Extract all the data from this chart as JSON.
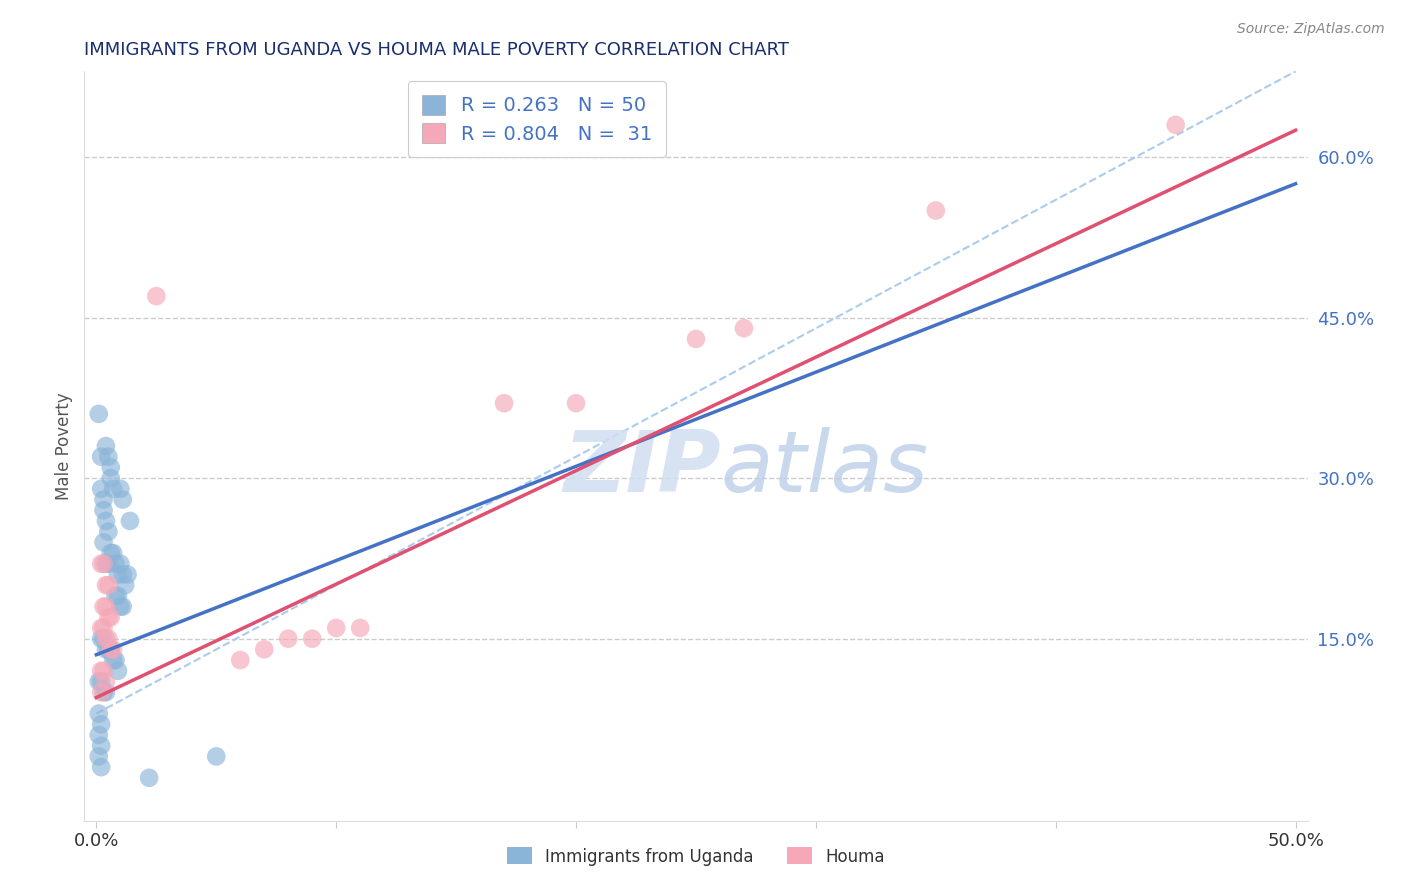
{
  "title": "IMMIGRANTS FROM UGANDA VS HOUMA MALE POVERTY CORRELATION CHART",
  "source_text": "Source: ZipAtlas.com",
  "ylabel": "Male Poverty",
  "xlim": [
    -0.005,
    0.505
  ],
  "ylim": [
    -0.02,
    0.68
  ],
  "xtick_positions": [
    0.0,
    0.1,
    0.2,
    0.3,
    0.4,
    0.5
  ],
  "xtick_labels": [
    "0.0%",
    "",
    "",
    "",
    "",
    "50.0%"
  ],
  "ytick_right_vals": [
    0.15,
    0.3,
    0.45,
    0.6
  ],
  "ytick_right_labels": [
    "15.0%",
    "30.0%",
    "45.0%",
    "60.0%"
  ],
  "grid_color": "#cccccc",
  "background_color": "#ffffff",
  "blue_dot_color": "#8ab4d8",
  "pink_dot_color": "#f4a8b8",
  "blue_line_color": "#4472c4",
  "pink_line_color": "#e05070",
  "dash_line_color": "#aaccee",
  "legend_line1": "R = 0.263   N = 50",
  "legend_line2": "R = 0.804   N =  31",
  "legend_label1": "Immigrants from Uganda",
  "legend_label2": "Houma",
  "watermark_zip": "ZIP",
  "watermark_atlas": "atlas",
  "title_color": "#1a2e6e",
  "axis_label_color": "#555555",
  "right_tick_color": "#4472c4",
  "source_color": "#888888",
  "blue_scatter": [
    [
      0.001,
      0.36
    ],
    [
      0.002,
      0.32
    ],
    [
      0.004,
      0.33
    ],
    [
      0.005,
      0.32
    ],
    [
      0.003,
      0.28
    ],
    [
      0.006,
      0.31
    ],
    [
      0.002,
      0.29
    ],
    [
      0.003,
      0.27
    ],
    [
      0.004,
      0.26
    ],
    [
      0.005,
      0.25
    ],
    [
      0.003,
      0.24
    ],
    [
      0.006,
      0.3
    ],
    [
      0.007,
      0.29
    ],
    [
      0.01,
      0.29
    ],
    [
      0.011,
      0.28
    ],
    [
      0.014,
      0.26
    ],
    [
      0.004,
      0.22
    ],
    [
      0.005,
      0.22
    ],
    [
      0.006,
      0.23
    ],
    [
      0.007,
      0.23
    ],
    [
      0.008,
      0.22
    ],
    [
      0.009,
      0.21
    ],
    [
      0.01,
      0.22
    ],
    [
      0.011,
      0.21
    ],
    [
      0.012,
      0.2
    ],
    [
      0.013,
      0.21
    ],
    [
      0.008,
      0.19
    ],
    [
      0.009,
      0.19
    ],
    [
      0.01,
      0.18
    ],
    [
      0.011,
      0.18
    ],
    [
      0.002,
      0.15
    ],
    [
      0.003,
      0.15
    ],
    [
      0.004,
      0.14
    ],
    [
      0.005,
      0.14
    ],
    [
      0.006,
      0.14
    ],
    [
      0.007,
      0.13
    ],
    [
      0.008,
      0.13
    ],
    [
      0.009,
      0.12
    ],
    [
      0.001,
      0.11
    ],
    [
      0.002,
      0.11
    ],
    [
      0.003,
      0.1
    ],
    [
      0.004,
      0.1
    ],
    [
      0.001,
      0.08
    ],
    [
      0.002,
      0.07
    ],
    [
      0.001,
      0.06
    ],
    [
      0.002,
      0.05
    ],
    [
      0.001,
      0.04
    ],
    [
      0.002,
      0.03
    ],
    [
      0.05,
      0.04
    ],
    [
      0.022,
      0.02
    ]
  ],
  "pink_scatter": [
    [
      0.002,
      0.22
    ],
    [
      0.003,
      0.22
    ],
    [
      0.004,
      0.2
    ],
    [
      0.005,
      0.2
    ],
    [
      0.003,
      0.18
    ],
    [
      0.004,
      0.18
    ],
    [
      0.005,
      0.17
    ],
    [
      0.006,
      0.17
    ],
    [
      0.002,
      0.16
    ],
    [
      0.003,
      0.16
    ],
    [
      0.004,
      0.15
    ],
    [
      0.005,
      0.15
    ],
    [
      0.006,
      0.14
    ],
    [
      0.007,
      0.14
    ],
    [
      0.002,
      0.12
    ],
    [
      0.003,
      0.12
    ],
    [
      0.004,
      0.11
    ],
    [
      0.002,
      0.1
    ],
    [
      0.06,
      0.13
    ],
    [
      0.07,
      0.14
    ],
    [
      0.08,
      0.15
    ],
    [
      0.09,
      0.15
    ],
    [
      0.1,
      0.16
    ],
    [
      0.11,
      0.16
    ],
    [
      0.025,
      0.47
    ],
    [
      0.17,
      0.37
    ],
    [
      0.2,
      0.37
    ],
    [
      0.25,
      0.43
    ],
    [
      0.27,
      0.44
    ],
    [
      0.35,
      0.55
    ],
    [
      0.45,
      0.63
    ]
  ],
  "blue_trendline": [
    [
      0.0,
      0.135
    ],
    [
      0.5,
      0.575
    ]
  ],
  "pink_trendline": [
    [
      0.0,
      0.095
    ],
    [
      0.5,
      0.625
    ]
  ]
}
